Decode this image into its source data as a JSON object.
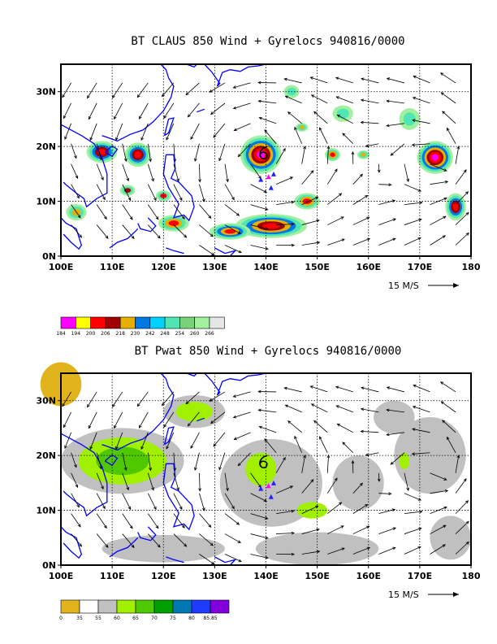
{
  "panels": [
    {
      "title": "BT CLAUS 850 Wind + Gyrelocs 940816/0000",
      "lat_ticks": [
        "30N",
        "20N",
        "10N",
        "0N"
      ],
      "lon_ticks": [
        "100E",
        "110E",
        "120E",
        "130E",
        "140E",
        "150E",
        "160E",
        "170E",
        "180"
      ],
      "ref_vector": "15 M/S",
      "colorbar": {
        "labels": [
          "184",
          "194",
          "200",
          "206",
          "218",
          "230",
          "242",
          "248",
          "254",
          "260",
          "266"
        ],
        "colors": [
          "#ff00ff",
          "#ffff00",
          "#ff0000",
          "#a00000",
          "#e6b000",
          "#0078e6",
          "#00d2ff",
          "#50e6b4",
          "#78d278",
          "#a0f0a0",
          "#e6e6e6"
        ]
      }
    },
    {
      "title": "BT Pwat 850 Wind + Gyrelocs 940816/0000",
      "lat_ticks": [
        "30N",
        "20N",
        "10N",
        "0N"
      ],
      "lon_ticks": [
        "100E",
        "110E",
        "120E",
        "130E",
        "140E",
        "150E",
        "160E",
        "170E",
        "180"
      ],
      "ref_vector": "15 M/S",
      "colorbar": {
        "labels": [
          "0",
          "35",
          "55",
          "60",
          "65",
          "70",
          "75",
          "80",
          "85.85"
        ],
        "colors": [
          "#e1b41e",
          "#ffffff",
          "#c0c0c0",
          "#a0f000",
          "#50c800",
          "#00a000",
          "#0078b4",
          "#1e3cff",
          "#8200dc"
        ]
      }
    }
  ],
  "chart_data": [
    {
      "type": "heatmap",
      "title": "BT CLAUS 850 Wind + Gyrelocs 940816/0000",
      "xlabel": "",
      "ylabel": "",
      "xlim": [
        100,
        180
      ],
      "ylim": [
        0,
        35
      ],
      "x_ticks": [
        100,
        110,
        120,
        130,
        140,
        150,
        160,
        170,
        180
      ],
      "y_ticks": [
        0,
        10,
        20,
        30
      ],
      "colorbar_levels": [
        184,
        194,
        200,
        206,
        218,
        230,
        242,
        248,
        254,
        260,
        266
      ],
      "grid": "dashed",
      "overlay": "850 hPa wind vectors, reference 15 m/s",
      "features": [
        {
          "kind": "typhoon_symbol",
          "lon": 139.5,
          "lat": 18.5
        },
        {
          "kind": "gyreloc_triangles",
          "points": [
            [
              139.0,
              14.0
            ],
            [
              140.5,
              14.5
            ],
            [
              141.5,
              15.0
            ],
            [
              141.0,
              12.5
            ]
          ]
        }
      ]
    },
    {
      "type": "heatmap",
      "title": "BT Pwat 850 Wind + Gyrelocs 940816/0000",
      "xlabel": "",
      "ylabel": "",
      "xlim": [
        100,
        180
      ],
      "ylim": [
        0,
        35
      ],
      "x_ticks": [
        100,
        110,
        120,
        130,
        140,
        150,
        160,
        170,
        180
      ],
      "y_ticks": [
        0,
        10,
        20,
        30
      ],
      "colorbar_levels": [
        0,
        35,
        55,
        60,
        65,
        70,
        75,
        80,
        85.85
      ],
      "grid": "dashed",
      "overlay": "850 hPa wind vectors, reference 15 m/s",
      "features": [
        {
          "kind": "typhoon_symbol",
          "lon": 139.5,
          "lat": 18.5
        },
        {
          "kind": "gyreloc_triangles",
          "points": [
            [
              139.0,
              14.0
            ],
            [
              140.5,
              14.5
            ],
            [
              141.5,
              15.0
            ],
            [
              141.0,
              12.5
            ]
          ]
        }
      ]
    }
  ]
}
